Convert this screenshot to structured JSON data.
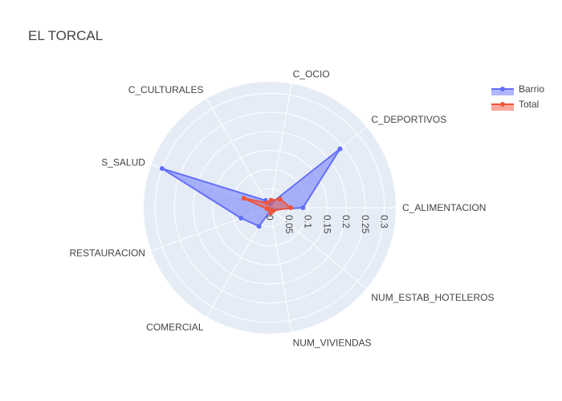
{
  "chart_data": {
    "type": "radar",
    "title": "EL TORCAL",
    "categories": [
      "C_ALIMENTACION",
      "C_DEPORTIVOS",
      "C_OCIO",
      "C_CULTURALES",
      "S_SALUD",
      "RESTAURACION",
      "COMERCIAL",
      "NUM_VIVIENDAS",
      "NUM_ESTAB_HOTELEROS"
    ],
    "radial_ticks": [
      "0",
      "0.05",
      "0.1",
      "0.15",
      "0.2",
      "0.25",
      "0.3"
    ],
    "radial_range": [
      0,
      0.33
    ],
    "legend_position": "top-right",
    "series": [
      {
        "name": "Barrio",
        "color": "#636efa",
        "values": [
          0.087,
          0.24,
          0.01,
          0.022,
          0.3,
          0.08,
          0.056,
          0.008,
          0.008
        ]
      },
      {
        "name": "Total",
        "color": "#ef553b",
        "values": [
          0.055,
          0.035,
          0.02,
          0.015,
          0.072,
          0.008,
          0.004,
          0.014,
          0.012
        ]
      }
    ]
  }
}
